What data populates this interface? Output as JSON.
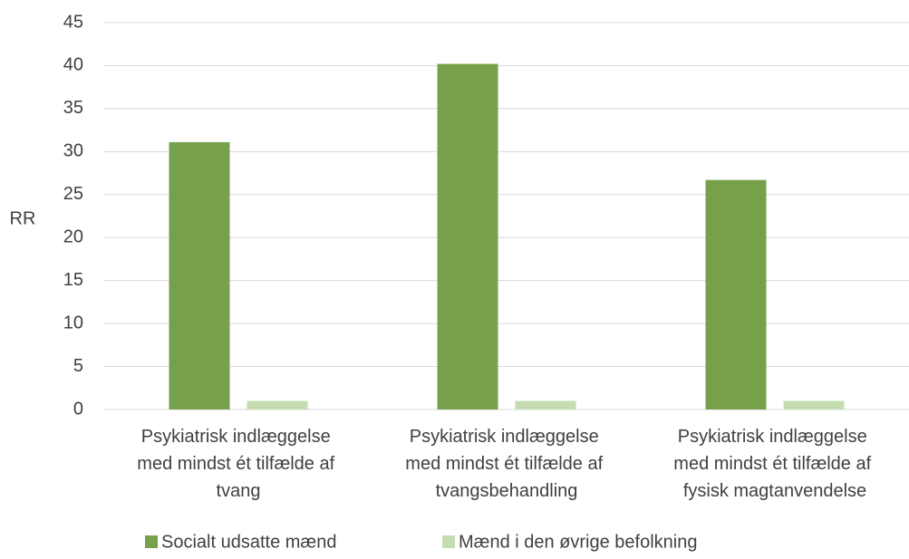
{
  "chart_data": {
    "type": "bar",
    "y_label": "RR",
    "categories": [
      "Psykiatrisk indlæggelse med mindst ét tilfælde af tvang",
      "Psykiatrisk indlæggelse med mindst ét tilfælde af tvangsbehandling",
      "Psykiatrisk indlæggelse med mindst ét tilfælde af fysisk magtanvendelse"
    ],
    "series": [
      {
        "name": "Socialt udsatte mænd",
        "color": "#77a04a",
        "values": [
          31.1,
          40.2,
          26.7
        ]
      },
      {
        "name": "Mænd i den øvrige befolkning",
        "color": "#c5dcb0",
        "values": [
          1.0,
          1.0,
          1.0
        ]
      }
    ],
    "ylim": [
      0,
      45
    ],
    "yticks": [
      0,
      5,
      10,
      15,
      20,
      25,
      30,
      35,
      40,
      45
    ],
    "grid": true,
    "legend": "bottom"
  }
}
